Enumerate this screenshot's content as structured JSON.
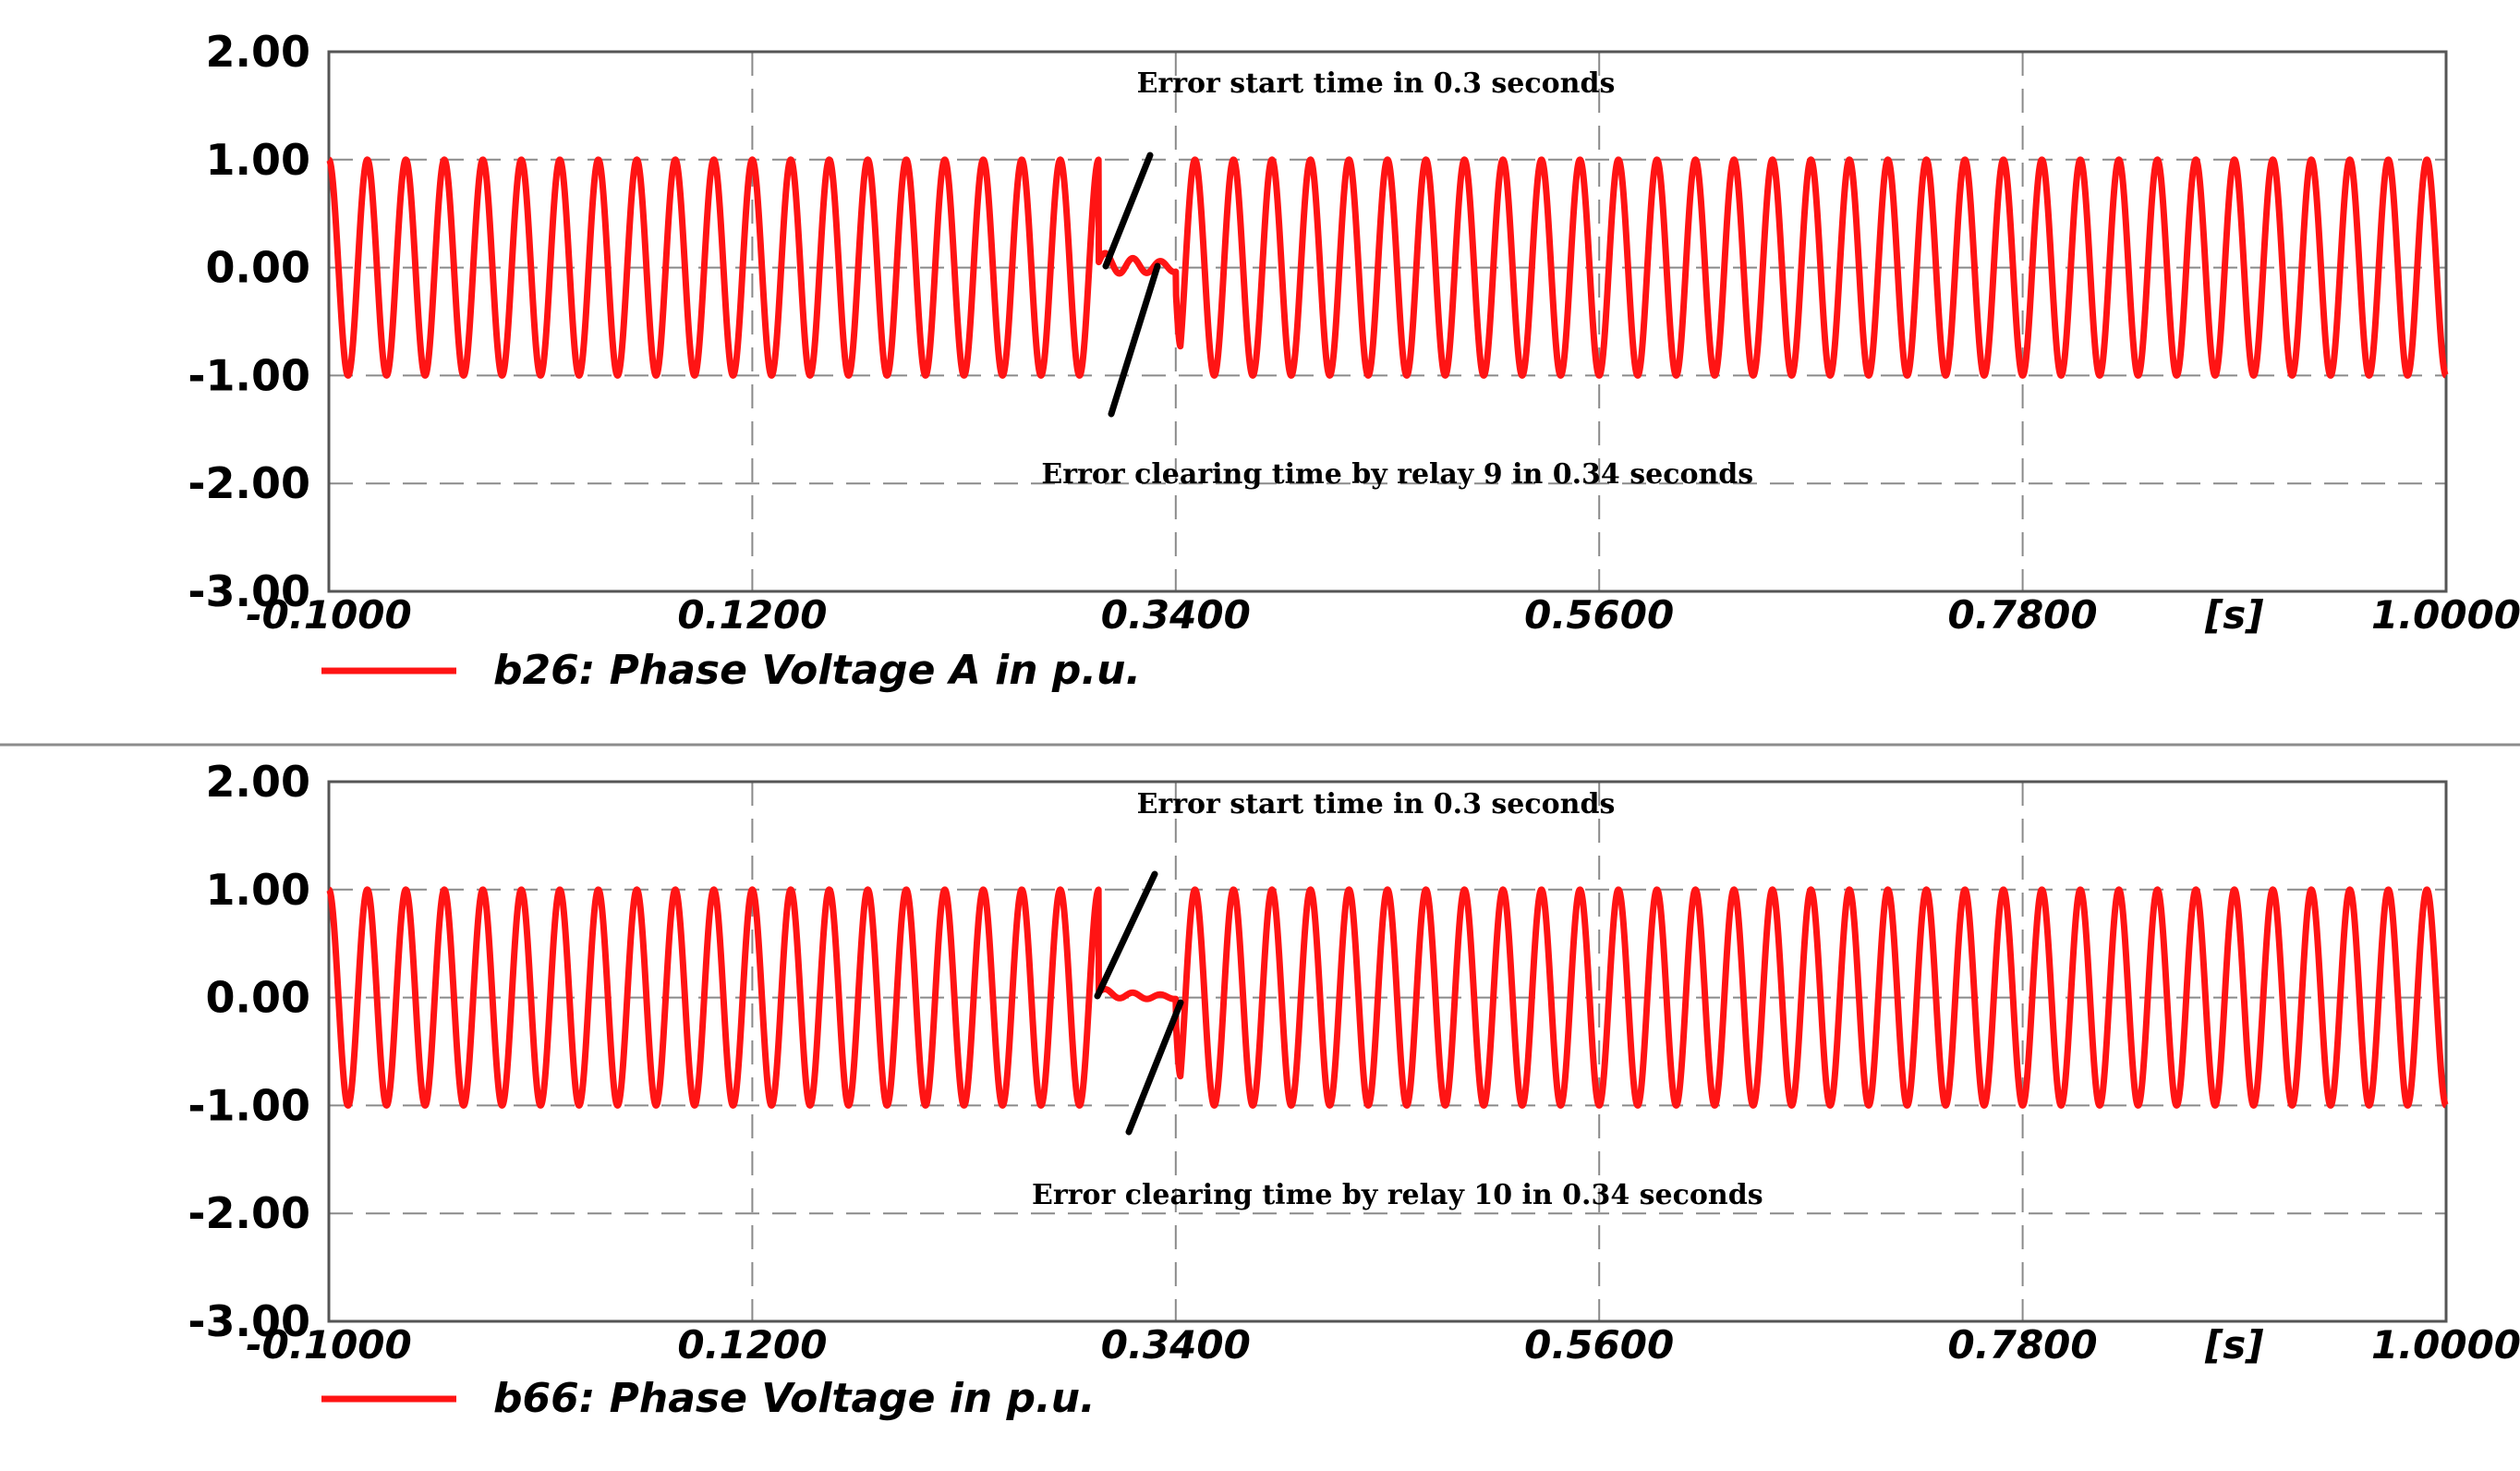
{
  "chart_data": [
    {
      "type": "line",
      "x_unit": "[s]",
      "xlim": [
        -0.1,
        1.0
      ],
      "ylim": [
        -3.0,
        2.0
      ],
      "x_ticks": [
        "-0.1000",
        "0.1200",
        "0.3400",
        "0.5600",
        "0.7800",
        "1.0000"
      ],
      "y_ticks": [
        "2.00",
        "1.00",
        "0.00",
        "-1.00",
        "-2.00",
        "-3.00"
      ],
      "grid": true,
      "series": [
        {
          "name": "b26: Phase Voltage A in p.u.",
          "color": "#ff1414",
          "waveform": "sinusoid",
          "frequency_hz": 50,
          "amplitude_pu": 1.0,
          "fault_start_s": 0.3,
          "fault_clear_s": 0.34,
          "fault_amplitude_pu": 0.1
        }
      ],
      "annotations": [
        {
          "text": "Error start time in 0.3 seconds",
          "x": 0.3
        },
        {
          "text": "Error clearing time by relay 9 in 0.34 seconds",
          "x": 0.34
        }
      ],
      "legend": "bottom-left"
    },
    {
      "type": "line",
      "x_unit": "[s]",
      "xlim": [
        -0.1,
        1.0
      ],
      "ylim": [
        -3.0,
        2.0
      ],
      "x_ticks": [
        "-0.1000",
        "0.1200",
        "0.3400",
        "0.5600",
        "0.7800",
        "1.0000"
      ],
      "y_ticks": [
        "2.00",
        "1.00",
        "0.00",
        "-1.00",
        "-2.00",
        "-3.00"
      ],
      "grid": true,
      "series": [
        {
          "name": "b66: Phase Voltage in p.u.",
          "color": "#ff1414",
          "waveform": "sinusoid",
          "frequency_hz": 50,
          "amplitude_pu": 1.0,
          "fault_start_s": 0.3,
          "fault_clear_s": 0.34,
          "fault_amplitude_pu": 0.04
        }
      ],
      "annotations": [
        {
          "text": "Error start time in 0.3 seconds",
          "x": 0.3
        },
        {
          "text": "Error clearing time by relay 10 in 0.34 seconds",
          "x": 0.34
        }
      ],
      "legend": "bottom-left"
    }
  ]
}
